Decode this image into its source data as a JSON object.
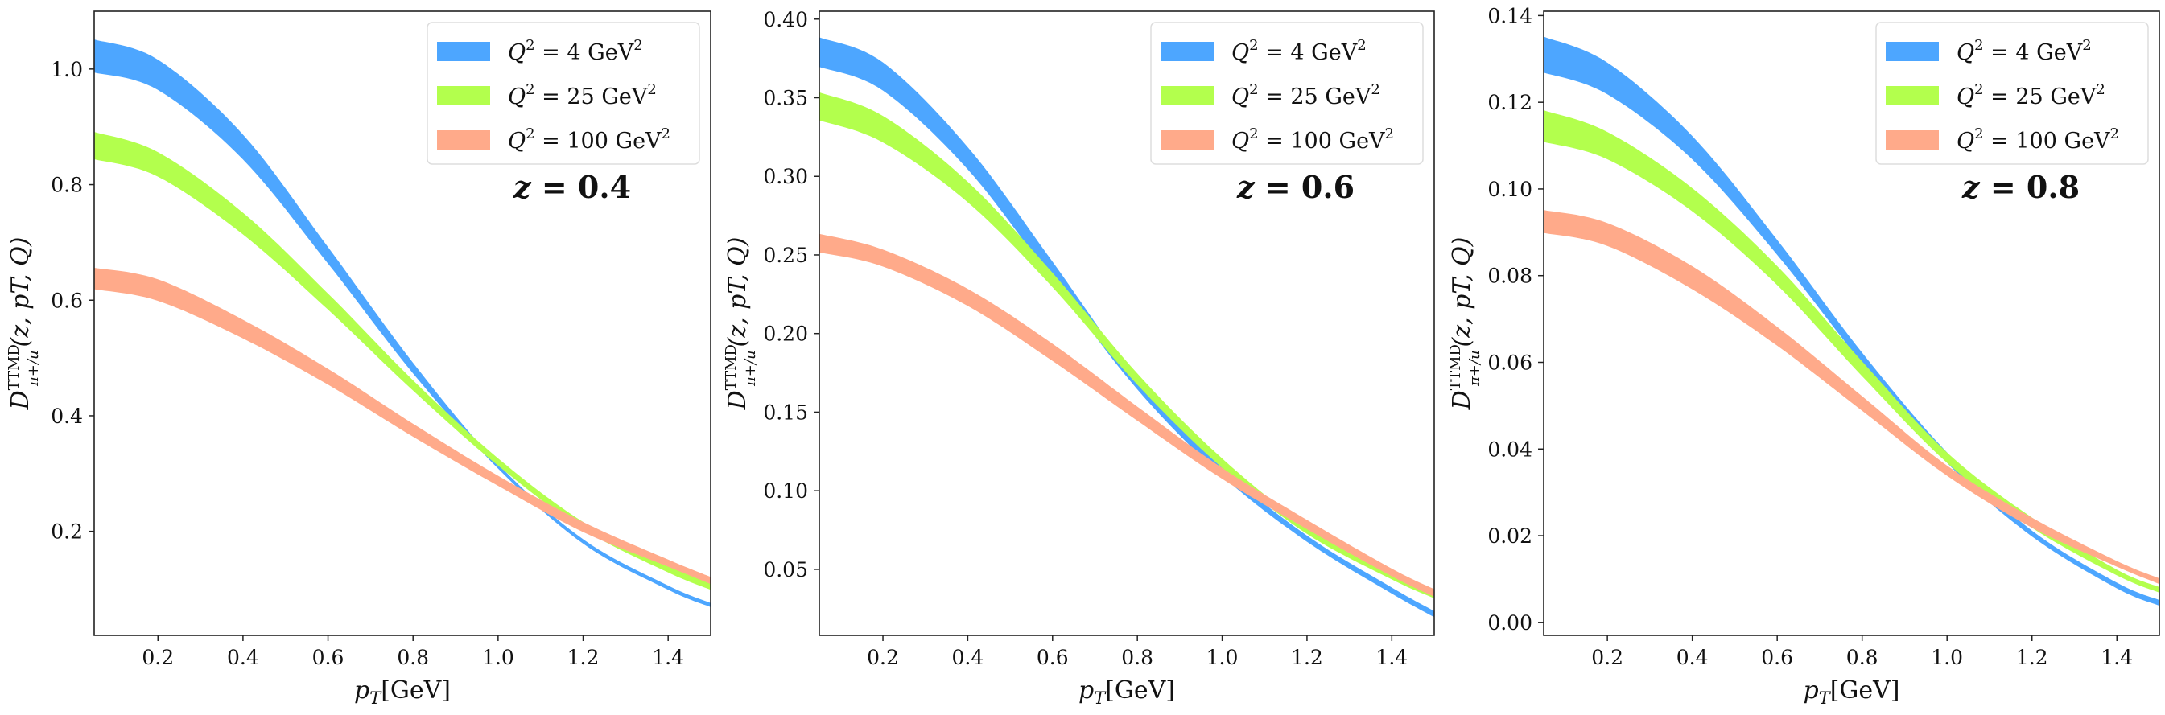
{
  "chart_data": [
    {
      "type": "area",
      "annotation": "z = 0.4",
      "xlabel": "p_T[GeV]",
      "ylabel": "D^TTMD_{π+/u}(z, p_T, Q)",
      "xlim": [
        0.05,
        1.5
      ],
      "ylim": [
        0.02,
        1.1
      ],
      "xticks": [
        0.2,
        0.4,
        0.6,
        0.8,
        1.0,
        1.2,
        1.4
      ],
      "xtick_labels": [
        "0.2",
        "0.4",
        "0.6",
        "0.8",
        "1.0",
        "1.2",
        "1.4"
      ],
      "yticks": [
        0.2,
        0.4,
        0.6,
        0.8,
        1.0
      ],
      "ytick_labels": [
        "0.2",
        "0.4",
        "0.6",
        "0.8",
        "1.0"
      ],
      "legend": "top-right",
      "series": [
        {
          "name": "Q^2 = 4 GeV^2",
          "color": "#4da6ff",
          "x": [
            0.05,
            0.2,
            0.4,
            0.6,
            0.8,
            1.0,
            1.2,
            1.4,
            1.5
          ],
          "lower": [
            0.995,
            0.965,
            0.845,
            0.665,
            0.475,
            0.31,
            0.18,
            0.1,
            0.07
          ],
          "upper": [
            1.05,
            1.015,
            0.885,
            0.69,
            0.49,
            0.315,
            0.185,
            0.105,
            0.075
          ]
        },
        {
          "name": "Q^2 = 25 GeV^2",
          "color": "#b3ff4d",
          "x": [
            0.05,
            0.2,
            0.4,
            0.6,
            0.8,
            1.0,
            1.2,
            1.4,
            1.5
          ],
          "lower": [
            0.845,
            0.815,
            0.715,
            0.585,
            0.445,
            0.315,
            0.205,
            0.13,
            0.1
          ],
          "upper": [
            0.89,
            0.855,
            0.75,
            0.61,
            0.46,
            0.325,
            0.215,
            0.14,
            0.11
          ]
        },
        {
          "name": "Q^2 = 100 GeV^2",
          "color": "#ffaa8a",
          "x": [
            0.05,
            0.2,
            0.4,
            0.6,
            0.8,
            1.0,
            1.2,
            1.4,
            1.5
          ],
          "lower": [
            0.62,
            0.6,
            0.535,
            0.455,
            0.365,
            0.28,
            0.2,
            0.14,
            0.11
          ],
          "upper": [
            0.655,
            0.635,
            0.565,
            0.48,
            0.385,
            0.295,
            0.215,
            0.15,
            0.12
          ]
        }
      ]
    },
    {
      "type": "area",
      "annotation": "z = 0.6",
      "xlabel": "p_T[GeV]",
      "ylabel": "D^TTMD_{π+/u}(z, p_T, Q)",
      "xlim": [
        0.05,
        1.5
      ],
      "ylim": [
        0.008,
        0.405
      ],
      "xticks": [
        0.2,
        0.4,
        0.6,
        0.8,
        1.0,
        1.2,
        1.4
      ],
      "xtick_labels": [
        "0.2",
        "0.4",
        "0.6",
        "0.8",
        "1.0",
        "1.2",
        "1.4"
      ],
      "yticks": [
        0.05,
        0.1,
        0.15,
        0.2,
        0.25,
        0.3,
        0.35,
        0.4
      ],
      "ytick_labels": [
        "0.05",
        "0.10",
        "0.15",
        "0.20",
        "0.25",
        "0.30",
        "0.35",
        "0.40"
      ],
      "legend": "top-right",
      "series": [
        {
          "name": "Q^2 = 4 GeV^2",
          "color": "#4da6ff",
          "x": [
            0.05,
            0.2,
            0.4,
            0.6,
            0.8,
            1.0,
            1.2,
            1.4,
            1.5
          ],
          "lower": [
            0.37,
            0.355,
            0.305,
            0.235,
            0.165,
            0.11,
            0.068,
            0.035,
            0.02
          ],
          "upper": [
            0.388,
            0.372,
            0.318,
            0.245,
            0.17,
            0.114,
            0.071,
            0.038,
            0.023
          ]
        },
        {
          "name": "Q^2 = 25 GeV^2",
          "color": "#b3ff4d",
          "x": [
            0.05,
            0.2,
            0.4,
            0.6,
            0.8,
            1.0,
            1.2,
            1.4,
            1.5
          ],
          "lower": [
            0.336,
            0.322,
            0.284,
            0.23,
            0.168,
            0.115,
            0.073,
            0.044,
            0.032
          ],
          "upper": [
            0.353,
            0.338,
            0.296,
            0.238,
            0.174,
            0.12,
            0.077,
            0.047,
            0.036
          ]
        },
        {
          "name": "Q^2 = 100 GeV^2",
          "color": "#ffaa8a",
          "x": [
            0.05,
            0.2,
            0.4,
            0.6,
            0.8,
            1.0,
            1.2,
            1.4,
            1.5
          ],
          "lower": [
            0.252,
            0.243,
            0.218,
            0.183,
            0.145,
            0.108,
            0.076,
            0.046,
            0.033
          ],
          "upper": [
            0.263,
            0.253,
            0.228,
            0.193,
            0.153,
            0.114,
            0.081,
            0.05,
            0.037
          ]
        }
      ]
    },
    {
      "type": "area",
      "annotation": "z = 0.8",
      "xlabel": "p_T[GeV]",
      "ylabel": "D^TTMD_{π+/u}(z, p_T, Q)",
      "xlim": [
        0.05,
        1.5
      ],
      "ylim": [
        -0.003,
        0.141
      ],
      "xticks": [
        0.2,
        0.4,
        0.6,
        0.8,
        1.0,
        1.2,
        1.4
      ],
      "xtick_labels": [
        "0.2",
        "0.4",
        "0.6",
        "0.8",
        "1.0",
        "1.2",
        "1.4"
      ],
      "yticks": [
        0.0,
        0.02,
        0.04,
        0.06,
        0.08,
        0.1,
        0.12,
        0.14
      ],
      "ytick_labels": [
        "0.00",
        "0.02",
        "0.04",
        "0.06",
        "0.08",
        "0.10",
        "0.12",
        "0.14"
      ],
      "legend": "top-right",
      "series": [
        {
          "name": "Q^2 = 4 GeV^2",
          "color": "#4da6ff",
          "x": [
            0.05,
            0.2,
            0.4,
            0.6,
            0.8,
            1.0,
            1.2,
            1.4,
            1.5
          ],
          "lower": [
            0.127,
            0.122,
            0.107,
            0.085,
            0.06,
            0.037,
            0.02,
            0.008,
            0.004
          ],
          "upper": [
            0.135,
            0.129,
            0.112,
            0.088,
            0.062,
            0.039,
            0.021,
            0.009,
            0.005
          ]
        },
        {
          "name": "Q^2 = 25 GeV^2",
          "color": "#b3ff4d",
          "x": [
            0.05,
            0.2,
            0.4,
            0.6,
            0.8,
            1.0,
            1.2,
            1.4,
            1.5
          ],
          "lower": [
            0.111,
            0.107,
            0.095,
            0.078,
            0.057,
            0.037,
            0.022,
            0.011,
            0.007
          ],
          "upper": [
            0.118,
            0.113,
            0.1,
            0.082,
            0.06,
            0.039,
            0.024,
            0.012,
            0.008
          ]
        },
        {
          "name": "Q^2 = 100 GeV^2",
          "color": "#ffaa8a",
          "x": [
            0.05,
            0.2,
            0.4,
            0.6,
            0.8,
            1.0,
            1.2,
            1.4,
            1.5
          ],
          "lower": [
            0.09,
            0.087,
            0.077,
            0.064,
            0.049,
            0.034,
            0.022,
            0.013,
            0.009
          ],
          "upper": [
            0.095,
            0.092,
            0.082,
            0.068,
            0.052,
            0.036,
            0.024,
            0.014,
            0.01
          ]
        }
      ]
    }
  ]
}
